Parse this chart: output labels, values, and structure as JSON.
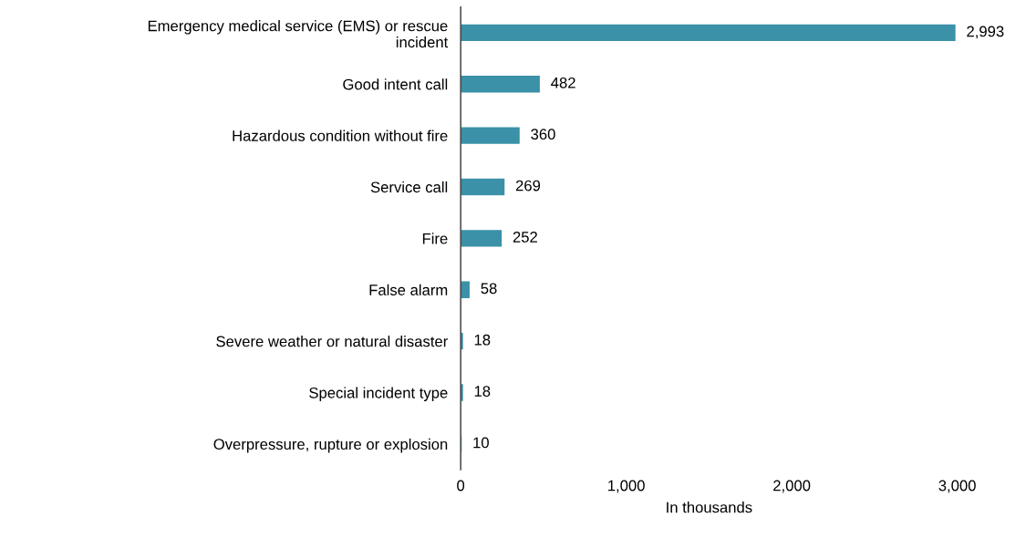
{
  "chart_data": {
    "type": "bar",
    "orientation": "horizontal",
    "xlabel": "In thousands",
    "categories": [
      "Emergency medical service (EMS) or rescue\nincident",
      "Good intent call",
      "Hazardous condition without fire",
      "Service call",
      "Fire",
      "False alarm",
      "Severe weather or natural disaster",
      "Special incident type",
      "Overpressure, rupture or explosion"
    ],
    "values": [
      2993,
      482,
      360,
      269,
      252,
      58,
      18,
      18,
      10
    ],
    "value_labels": [
      "2,993",
      "482",
      "360",
      "269",
      "252",
      "58",
      "18",
      "18",
      "10"
    ],
    "color": "#3a91a8",
    "xlim": [
      0,
      3000
    ],
    "xticks": [
      0,
      {
        "value": 1000,
        "label": "1,000"
      },
      {
        "value": 2000,
        "label": "2,000"
      },
      {
        "value": 3000,
        "label": "3,000"
      }
    ],
    "grid": false
  }
}
